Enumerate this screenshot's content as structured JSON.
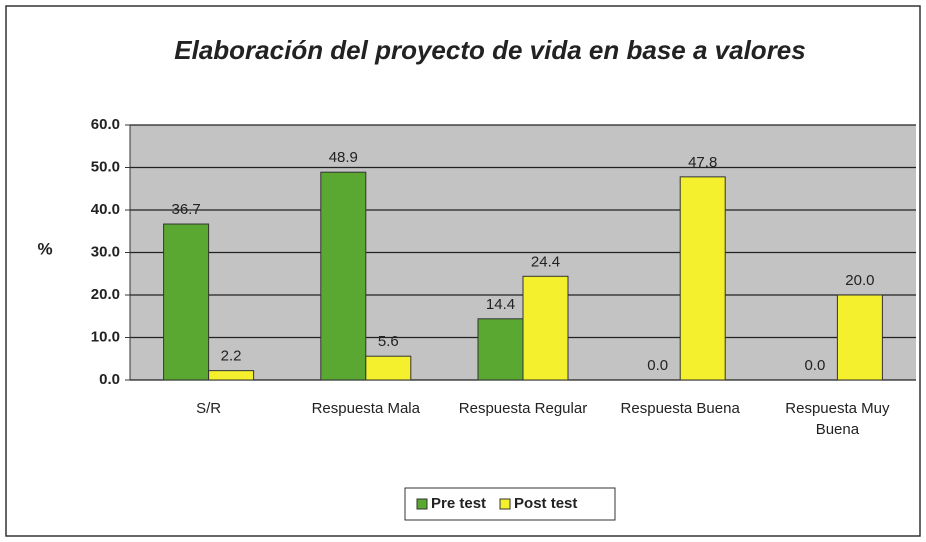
{
  "chart_data": {
    "type": "bar",
    "title": "Elaboración del proyecto de vida en base a valores",
    "y_label": "%",
    "categories": [
      "S/R",
      "Respuesta Mala",
      "Respuesta Regular",
      "Respuesta Buena",
      "Respuesta Muy Buena"
    ],
    "series": [
      {
        "name": "Pre test",
        "color": "#5aa832",
        "values": [
          36.7,
          48.9,
          14.4,
          0,
          0
        ],
        "value_labels": [
          "36.7",
          "48.9",
          "14.4",
          "0.0",
          "0.0"
        ]
      },
      {
        "name": "Post test",
        "color": "#f4f02e",
        "values": [
          2.2,
          5.6,
          24.4,
          47.8,
          20
        ],
        "value_labels": [
          "2.2",
          "5.6",
          "24.4",
          "47.8",
          "20.0"
        ]
      }
    ],
    "ylim": [
      0,
      60
    ],
    "yticks": [
      {
        "value": 0,
        "label": "0.0"
      },
      {
        "value": 10,
        "label": "10.0"
      },
      {
        "value": 20,
        "label": "20.0"
      },
      {
        "value": 30,
        "label": "30.0"
      },
      {
        "value": 40,
        "label": "40.0"
      },
      {
        "value": 50,
        "label": "50.0"
      },
      {
        "value": 60,
        "label": "60.0"
      }
    ],
    "grid": true,
    "legend": "bottom"
  }
}
